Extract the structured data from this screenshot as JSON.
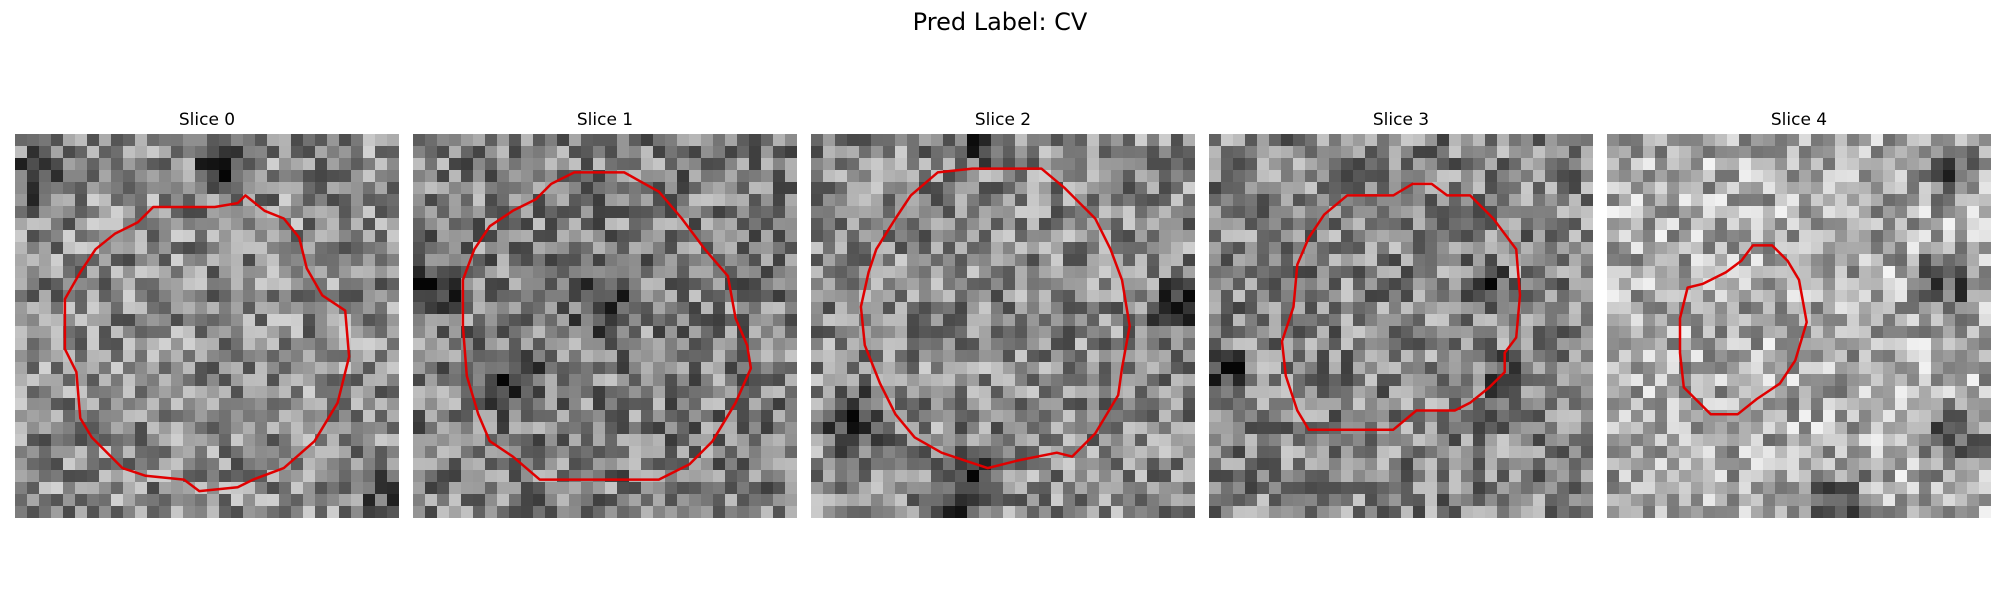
{
  "figure": {
    "title": "Pred Label: CV",
    "contour_color": "#e00000"
  },
  "slices": [
    {
      "title": "Slice 0",
      "seed": 11,
      "mean": 0.55,
      "dark_spots": [
        [
          0.54,
          0.08,
          0.1
        ],
        [
          0.06,
          0.12,
          0.1
        ],
        [
          0.96,
          0.92,
          0.08
        ]
      ],
      "contour": [
        [
          0.6,
          0.16
        ],
        [
          0.65,
          0.2
        ],
        [
          0.7,
          0.22
        ],
        [
          0.74,
          0.27
        ],
        [
          0.76,
          0.35
        ],
        [
          0.8,
          0.42
        ],
        [
          0.86,
          0.46
        ],
        [
          0.87,
          0.58
        ],
        [
          0.84,
          0.7
        ],
        [
          0.78,
          0.8
        ],
        [
          0.7,
          0.87
        ],
        [
          0.62,
          0.9
        ],
        [
          0.58,
          0.92
        ],
        [
          0.48,
          0.93
        ],
        [
          0.44,
          0.9
        ],
        [
          0.34,
          0.89
        ],
        [
          0.28,
          0.87
        ],
        [
          0.2,
          0.79
        ],
        [
          0.17,
          0.74
        ],
        [
          0.16,
          0.62
        ],
        [
          0.13,
          0.56
        ],
        [
          0.13,
          0.43
        ],
        [
          0.17,
          0.36
        ],
        [
          0.21,
          0.3
        ],
        [
          0.26,
          0.26
        ],
        [
          0.32,
          0.23
        ],
        [
          0.36,
          0.19
        ],
        [
          0.48,
          0.19
        ],
        [
          0.52,
          0.19
        ],
        [
          0.58,
          0.18
        ]
      ]
    },
    {
      "title": "Slice 1",
      "seed": 23,
      "mean": 0.5,
      "dark_spots": [
        [
          0.06,
          0.4,
          0.1
        ],
        [
          0.26,
          0.65,
          0.1
        ],
        [
          0.5,
          0.45,
          0.1
        ]
      ],
      "contour": [
        [
          0.42,
          0.1
        ],
        [
          0.55,
          0.1
        ],
        [
          0.64,
          0.15
        ],
        [
          0.7,
          0.22
        ],
        [
          0.76,
          0.3
        ],
        [
          0.82,
          0.37
        ],
        [
          0.84,
          0.48
        ],
        [
          0.87,
          0.55
        ],
        [
          0.88,
          0.61
        ],
        [
          0.84,
          0.7
        ],
        [
          0.78,
          0.8
        ],
        [
          0.72,
          0.86
        ],
        [
          0.64,
          0.9
        ],
        [
          0.55,
          0.9
        ],
        [
          0.44,
          0.9
        ],
        [
          0.33,
          0.9
        ],
        [
          0.26,
          0.84
        ],
        [
          0.2,
          0.8
        ],
        [
          0.17,
          0.73
        ],
        [
          0.14,
          0.63
        ],
        [
          0.13,
          0.5
        ],
        [
          0.13,
          0.38
        ],
        [
          0.16,
          0.3
        ],
        [
          0.2,
          0.24
        ],
        [
          0.26,
          0.2
        ],
        [
          0.32,
          0.17
        ],
        [
          0.36,
          0.13
        ]
      ]
    },
    {
      "title": "Slice 2",
      "seed": 37,
      "mean": 0.54,
      "dark_spots": [
        [
          0.45,
          0.03,
          0.08
        ],
        [
          0.12,
          0.75,
          0.12
        ],
        [
          0.4,
          0.92,
          0.12
        ],
        [
          0.96,
          0.45,
          0.1
        ]
      ],
      "contour": [
        [
          0.33,
          0.1
        ],
        [
          0.42,
          0.09
        ],
        [
          0.52,
          0.09
        ],
        [
          0.6,
          0.09
        ],
        [
          0.66,
          0.14
        ],
        [
          0.74,
          0.22
        ],
        [
          0.78,
          0.3
        ],
        [
          0.81,
          0.38
        ],
        [
          0.83,
          0.5
        ],
        [
          0.81,
          0.61
        ],
        [
          0.8,
          0.68
        ],
        [
          0.74,
          0.78
        ],
        [
          0.68,
          0.84
        ],
        [
          0.64,
          0.83
        ],
        [
          0.54,
          0.85
        ],
        [
          0.46,
          0.87
        ],
        [
          0.4,
          0.85
        ],
        [
          0.34,
          0.83
        ],
        [
          0.27,
          0.79
        ],
        [
          0.22,
          0.73
        ],
        [
          0.18,
          0.65
        ],
        [
          0.14,
          0.55
        ],
        [
          0.13,
          0.45
        ],
        [
          0.15,
          0.36
        ],
        [
          0.17,
          0.3
        ],
        [
          0.22,
          0.22
        ],
        [
          0.26,
          0.16
        ]
      ]
    },
    {
      "title": "Slice 3",
      "seed": 41,
      "mean": 0.52,
      "dark_spots": [
        [
          0.77,
          0.64,
          0.08
        ],
        [
          0.73,
          0.4,
          0.07
        ],
        [
          0.05,
          0.62,
          0.08
        ]
      ],
      "contour": [
        [
          0.36,
          0.16
        ],
        [
          0.48,
          0.16
        ],
        [
          0.53,
          0.13
        ],
        [
          0.58,
          0.13
        ],
        [
          0.62,
          0.16
        ],
        [
          0.68,
          0.16
        ],
        [
          0.74,
          0.22
        ],
        [
          0.8,
          0.3
        ],
        [
          0.81,
          0.42
        ],
        [
          0.8,
          0.53
        ],
        [
          0.77,
          0.57
        ],
        [
          0.77,
          0.62
        ],
        [
          0.73,
          0.66
        ],
        [
          0.68,
          0.7
        ],
        [
          0.64,
          0.72
        ],
        [
          0.54,
          0.72
        ],
        [
          0.48,
          0.77
        ],
        [
          0.34,
          0.77
        ],
        [
          0.26,
          0.77
        ],
        [
          0.23,
          0.72
        ],
        [
          0.2,
          0.63
        ],
        [
          0.19,
          0.54
        ],
        [
          0.22,
          0.45
        ],
        [
          0.23,
          0.34
        ],
        [
          0.26,
          0.27
        ],
        [
          0.3,
          0.21
        ]
      ]
    },
    {
      "title": "Slice 4",
      "seed": 53,
      "mean": 0.68,
      "dark_spots": [
        [
          0.88,
          0.4,
          0.12
        ],
        [
          0.9,
          0.1,
          0.1
        ],
        [
          0.6,
          0.96,
          0.12
        ],
        [
          0.9,
          0.8,
          0.12
        ]
      ],
      "contour": [
        [
          0.31,
          0.36
        ],
        [
          0.35,
          0.33
        ],
        [
          0.38,
          0.29
        ],
        [
          0.43,
          0.29
        ],
        [
          0.47,
          0.33
        ],
        [
          0.5,
          0.38
        ],
        [
          0.52,
          0.49
        ],
        [
          0.49,
          0.59
        ],
        [
          0.45,
          0.65
        ],
        [
          0.39,
          0.69
        ],
        [
          0.34,
          0.73
        ],
        [
          0.27,
          0.73
        ],
        [
          0.2,
          0.66
        ],
        [
          0.19,
          0.57
        ],
        [
          0.19,
          0.48
        ],
        [
          0.21,
          0.4
        ],
        [
          0.25,
          0.39
        ]
      ]
    }
  ]
}
